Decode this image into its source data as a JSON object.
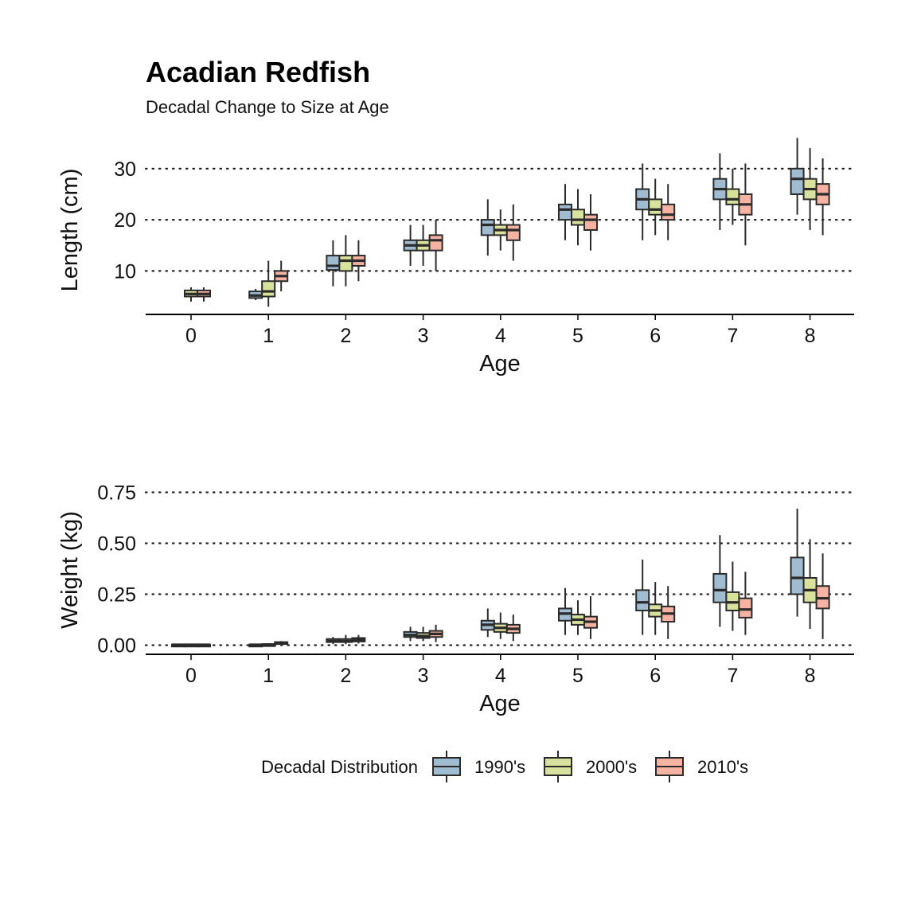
{
  "title": "Acadian Redfish",
  "subtitle": "Decadal Change to Size at Age",
  "colors": {
    "1990's": "#9fbcd1",
    "2000's": "#d9e29d",
    "2010's": "#f6b2a3",
    "outline": "#2b2b2b",
    "gridline": "#222222",
    "axis": "#000000"
  },
  "legend": {
    "title": "Decadal Distribution",
    "items": [
      "1990's",
      "2000's",
      "2010's"
    ],
    "placement": "bottom"
  },
  "chart_data": [
    {
      "type": "box",
      "xlabel": "Age",
      "ylabel": "Length (cm)",
      "categories": [
        "0",
        "1",
        "2",
        "3",
        "4",
        "5",
        "6",
        "7",
        "8"
      ],
      "yticks": [
        10,
        20,
        30
      ],
      "ytick_labels": [
        "10",
        "20",
        "30"
      ],
      "ylim": [
        1.5,
        36.2
      ],
      "grid": "horizontal dotted",
      "series": [
        {
          "name": "1990's",
          "boxes": [
            null,
            {
              "low": 4.3,
              "q1": 4.7,
              "median": 5.2,
              "q3": 6.0,
              "high": 6.5
            },
            {
              "low": 7.0,
              "q1": 10.2,
              "median": 11.0,
              "q3": 13.0,
              "high": 16.0
            },
            {
              "low": 11.0,
              "q1": 14.0,
              "median": 15.0,
              "q3": 16.0,
              "high": 19.0
            },
            {
              "low": 13.0,
              "q1": 17.0,
              "median": 19.0,
              "q3": 20.0,
              "high": 24.0
            },
            {
              "low": 16.0,
              "q1": 20.0,
              "median": 22.0,
              "q3": 23.0,
              "high": 27.0
            },
            {
              "low": 16.0,
              "q1": 22.0,
              "median": 24.0,
              "q3": 26.0,
              "high": 31.0
            },
            {
              "low": 18.0,
              "q1": 24.0,
              "median": 26.0,
              "q3": 28.0,
              "high": 33.0
            },
            {
              "low": 21.0,
              "q1": 25.0,
              "median": 28.0,
              "q3": 30.0,
              "high": 36.0
            }
          ]
        },
        {
          "name": "2000's",
          "boxes": [
            {
              "low": 4.0,
              "q1": 5.0,
              "median": 5.5,
              "q3": 6.2,
              "high": 6.8
            },
            {
              "low": 3.0,
              "q1": 5.0,
              "median": 6.0,
              "q3": 8.0,
              "high": 12.0
            },
            {
              "low": 7.0,
              "q1": 10.0,
              "median": 12.0,
              "q3": 13.0,
              "high": 17.0
            },
            {
              "low": 11.0,
              "q1": 14.0,
              "median": 15.0,
              "q3": 16.0,
              "high": 19.0
            },
            {
              "low": 14.0,
              "q1": 17.0,
              "median": 18.0,
              "q3": 19.0,
              "high": 22.0
            },
            {
              "low": 15.0,
              "q1": 19.0,
              "median": 20.0,
              "q3": 22.0,
              "high": 26.0
            },
            {
              "low": 17.0,
              "q1": 21.0,
              "median": 22.0,
              "q3": 24.0,
              "high": 28.0
            },
            {
              "low": 19.0,
              "q1": 23.0,
              "median": 24.0,
              "q3": 26.0,
              "high": 30.0
            },
            {
              "low": 18.0,
              "q1": 24.0,
              "median": 26.0,
              "q3": 28.0,
              "high": 34.0
            }
          ]
        },
        {
          "name": "2010's",
          "boxes": [
            {
              "low": 4.0,
              "q1": 5.0,
              "median": 5.5,
              "q3": 6.2,
              "high": 6.8
            },
            {
              "low": 6.0,
              "q1": 8.0,
              "median": 9.0,
              "q3": 10.0,
              "high": 12.0
            },
            {
              "low": 8.0,
              "q1": 11.0,
              "median": 12.0,
              "q3": 13.0,
              "high": 16.0
            },
            {
              "low": 10.0,
              "q1": 14.0,
              "median": 16.0,
              "q3": 17.0,
              "high": 20.0
            },
            {
              "low": 12.0,
              "q1": 16.0,
              "median": 18.0,
              "q3": 19.0,
              "high": 23.0
            },
            {
              "low": 14.0,
              "q1": 18.0,
              "median": 20.0,
              "q3": 21.0,
              "high": 25.0
            },
            {
              "low": 16.0,
              "q1": 20.0,
              "median": 21.0,
              "q3": 23.0,
              "high": 27.0
            },
            {
              "low": 15.0,
              "q1": 21.0,
              "median": 23.0,
              "q3": 25.0,
              "high": 31.0
            },
            {
              "low": 17.0,
              "q1": 23.0,
              "median": 25.0,
              "q3": 27.0,
              "high": 32.0
            }
          ]
        }
      ]
    },
    {
      "type": "box",
      "xlabel": "Age",
      "ylabel": "Weight (kg)",
      "categories": [
        "0",
        "1",
        "2",
        "3",
        "4",
        "5",
        "6",
        "7",
        "8"
      ],
      "yticks": [
        0,
        0.25,
        0.5,
        0.75
      ],
      "ytick_labels": [
        "0.00",
        "0.25",
        "0.50",
        "0.75"
      ],
      "ylim": [
        -0.045,
        0.83
      ],
      "grid": "horizontal dotted",
      "series": [
        {
          "name": "1990's",
          "boxes": [
            {
              "low": 0.0,
              "q1": 0.001,
              "median": 0.002,
              "q3": 0.003,
              "high": 0.004
            },
            {
              "low": 0.0,
              "q1": 0.001,
              "median": 0.002,
              "q3": 0.003,
              "high": 0.004
            },
            {
              "low": 0.005,
              "q1": 0.015,
              "median": 0.02,
              "q3": 0.03,
              "high": 0.04
            },
            {
              "low": 0.02,
              "q1": 0.04,
              "median": 0.05,
              "q3": 0.065,
              "high": 0.09
            },
            {
              "low": 0.04,
              "q1": 0.075,
              "median": 0.1,
              "q3": 0.12,
              "high": 0.18
            },
            {
              "low": 0.05,
              "q1": 0.12,
              "median": 0.155,
              "q3": 0.18,
              "high": 0.28
            },
            {
              "low": 0.05,
              "q1": 0.17,
              "median": 0.21,
              "q3": 0.27,
              "high": 0.42
            },
            {
              "low": 0.09,
              "q1": 0.21,
              "median": 0.27,
              "q3": 0.35,
              "high": 0.54
            },
            {
              "low": 0.14,
              "q1": 0.25,
              "median": 0.33,
              "q3": 0.43,
              "high": 0.67
            }
          ]
        },
        {
          "name": "2000's",
          "boxes": [
            {
              "low": 0.0,
              "q1": 0.001,
              "median": 0.002,
              "q3": 0.003,
              "high": 0.004
            },
            {
              "low": 0.0,
              "q1": 0.001,
              "median": 0.003,
              "q3": 0.005,
              "high": 0.01
            },
            {
              "low": 0.005,
              "q1": 0.015,
              "median": 0.02,
              "q3": 0.03,
              "high": 0.05
            },
            {
              "low": 0.02,
              "q1": 0.035,
              "median": 0.045,
              "q3": 0.06,
              "high": 0.09
            },
            {
              "low": 0.03,
              "q1": 0.065,
              "median": 0.085,
              "q3": 0.105,
              "high": 0.16
            },
            {
              "low": 0.05,
              "q1": 0.1,
              "median": 0.125,
              "q3": 0.15,
              "high": 0.22
            },
            {
              "low": 0.05,
              "q1": 0.14,
              "median": 0.17,
              "q3": 0.2,
              "high": 0.31
            },
            {
              "low": 0.07,
              "q1": 0.17,
              "median": 0.21,
              "q3": 0.26,
              "high": 0.41
            },
            {
              "low": 0.08,
              "q1": 0.21,
              "median": 0.27,
              "q3": 0.33,
              "high": 0.52
            }
          ]
        },
        {
          "name": "2010's",
          "boxes": [
            {
              "low": 0.0,
              "q1": 0.001,
              "median": 0.002,
              "q3": 0.003,
              "high": 0.004
            },
            {
              "low": 0.002,
              "q1": 0.006,
              "median": 0.01,
              "q3": 0.015,
              "high": 0.02
            },
            {
              "low": 0.008,
              "q1": 0.018,
              "median": 0.025,
              "q3": 0.035,
              "high": 0.05
            },
            {
              "low": 0.015,
              "q1": 0.04,
              "median": 0.055,
              "q3": 0.07,
              "high": 0.1
            },
            {
              "low": 0.02,
              "q1": 0.06,
              "median": 0.08,
              "q3": 0.1,
              "high": 0.15
            },
            {
              "low": 0.03,
              "q1": 0.085,
              "median": 0.115,
              "q3": 0.14,
              "high": 0.24
            },
            {
              "low": 0.03,
              "q1": 0.115,
              "median": 0.155,
              "q3": 0.19,
              "high": 0.29
            },
            {
              "low": 0.05,
              "q1": 0.135,
              "median": 0.175,
              "q3": 0.23,
              "high": 0.36
            },
            {
              "low": 0.03,
              "q1": 0.18,
              "median": 0.23,
              "q3": 0.29,
              "high": 0.45
            }
          ]
        }
      ]
    }
  ]
}
